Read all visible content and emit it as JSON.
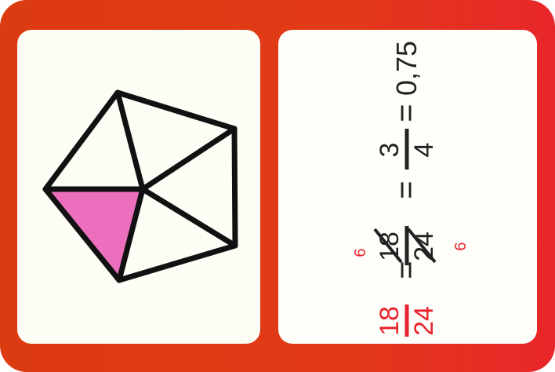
{
  "pentagon": {
    "shaded_parts": 1,
    "total_parts": 5,
    "shade_color": "#ec6fbd"
  },
  "colors": {
    "frame": "#e03a16",
    "red_ink": "#e8232d",
    "black_ink": "#222222"
  },
  "expression": {
    "frac1_num": "18",
    "frac1_den": "24",
    "equals1": "=",
    "frac2_num": "18",
    "frac2_den": "24",
    "cancel_num": "6",
    "cancel_den": "6",
    "equals2": "=",
    "frac3_num": "3",
    "frac3_den": "4",
    "equals3": "=",
    "decimal": "0,75"
  }
}
